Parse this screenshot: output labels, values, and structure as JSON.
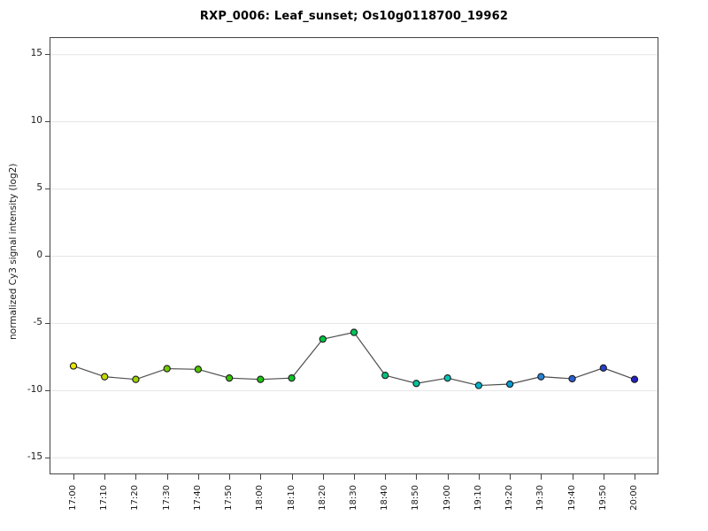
{
  "chart_data": {
    "type": "line",
    "title": "RXP_0006: Leaf_sunset; Os10g0118700_19962",
    "xlabel": "",
    "ylabel": "normalized Cy3 signal intensity (log2)",
    "categories": [
      "17:00",
      "17:10",
      "17:20",
      "17:30",
      "17:40",
      "17:50",
      "18:00",
      "18:10",
      "18:20",
      "18:30",
      "18:40",
      "18:50",
      "19:00",
      "19:10",
      "19:20",
      "19:30",
      "19:40",
      "19:50",
      "20:00"
    ],
    "series": [
      {
        "name": "normalized Cy3 signal intensity",
        "values": [
          -8.2,
          -9.0,
          -9.2,
          -8.4,
          -8.45,
          -9.1,
          -9.2,
          -9.1,
          -6.2,
          -5.7,
          -8.9,
          -9.5,
          -9.1,
          -9.65,
          -9.55,
          -9.0,
          -9.15,
          -8.35,
          -9.2
        ]
      }
    ],
    "point_colors": [
      "#e8e800",
      "#c4da00",
      "#9cd200",
      "#74ca00",
      "#54c600",
      "#38c400",
      "#20c410",
      "#10c428",
      "#00c442",
      "#00c45a",
      "#00c47a",
      "#00c49a",
      "#00c2b6",
      "#00b2cc",
      "#009cd8",
      "#2682da",
      "#2a60d2",
      "#2840ca",
      "#2222c2"
    ],
    "yticks": [
      -15,
      -10,
      -5,
      0,
      5,
      10,
      15
    ],
    "ylim": [
      -16.2,
      16.2
    ],
    "grid": "horizontal gridlines at every y tick, light gray",
    "legend": "none",
    "colors": {
      "line": "#4d4d4d",
      "marker_outline": "#1a1a1a",
      "gridline": "#e5e5e5",
      "axis_box": "#434343",
      "background": "#ffffff",
      "text": "#000000"
    }
  }
}
